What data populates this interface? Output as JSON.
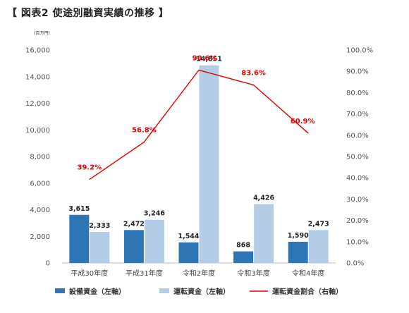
{
  "page": {
    "title": "【 図表2 使途別融資実績の推移 】"
  },
  "chart_data": {
    "type": "bar",
    "title": "",
    "y_unit_label": "(百万円)",
    "categories": [
      "平成30年度",
      "平成31年度",
      "令和2年度",
      "令和3年度",
      "令和4年度"
    ],
    "y_left": {
      "ylim": [
        0,
        16000
      ],
      "ticks": [
        0,
        2000,
        4000,
        6000,
        8000,
        10000,
        12000,
        14000,
        16000
      ],
      "tick_labels": [
        "0",
        "2,000",
        "4,000",
        "6,000",
        "8,000",
        "10,000",
        "12,000",
        "14,000",
        "16,000"
      ]
    },
    "y_right": {
      "ylim": [
        0,
        100
      ],
      "ticks": [
        0,
        10,
        20,
        30,
        40,
        50,
        60,
        70,
        80,
        90,
        100
      ],
      "tick_labels": [
        "0.0%",
        "10.0%",
        "20.0%",
        "30.0%",
        "40.0%",
        "50.0%",
        "60.0%",
        "70.0%",
        "80.0%",
        "90.0%",
        "100.0%"
      ]
    },
    "series": [
      {
        "name": "設備資金（左軸）",
        "type": "bar",
        "axis": "left",
        "color": "#2e75b6",
        "values": [
          3615,
          2472,
          1544,
          868,
          1590
        ],
        "labels": [
          "3,615",
          "2,472",
          "1,544",
          "868",
          "1,590"
        ]
      },
      {
        "name": "運転資金（左軸）",
        "type": "bar",
        "axis": "left",
        "color": "#b4cde6",
        "values": [
          2333,
          3246,
          14851,
          4426,
          2473
        ],
        "labels": [
          "2,333",
          "3,246",
          "14,851",
          "4,426",
          "2,473"
        ]
      },
      {
        "name": "運転資金割合（右軸）",
        "type": "line",
        "axis": "right",
        "color": "#e60000",
        "values": [
          39.2,
          56.8,
          90.6,
          83.6,
          60.9
        ],
        "labels": [
          "39.2%",
          "56.8%",
          "90.6%",
          "83.6%",
          "60.9%"
        ]
      }
    ],
    "grid": false,
    "legend_position": "bottom"
  }
}
